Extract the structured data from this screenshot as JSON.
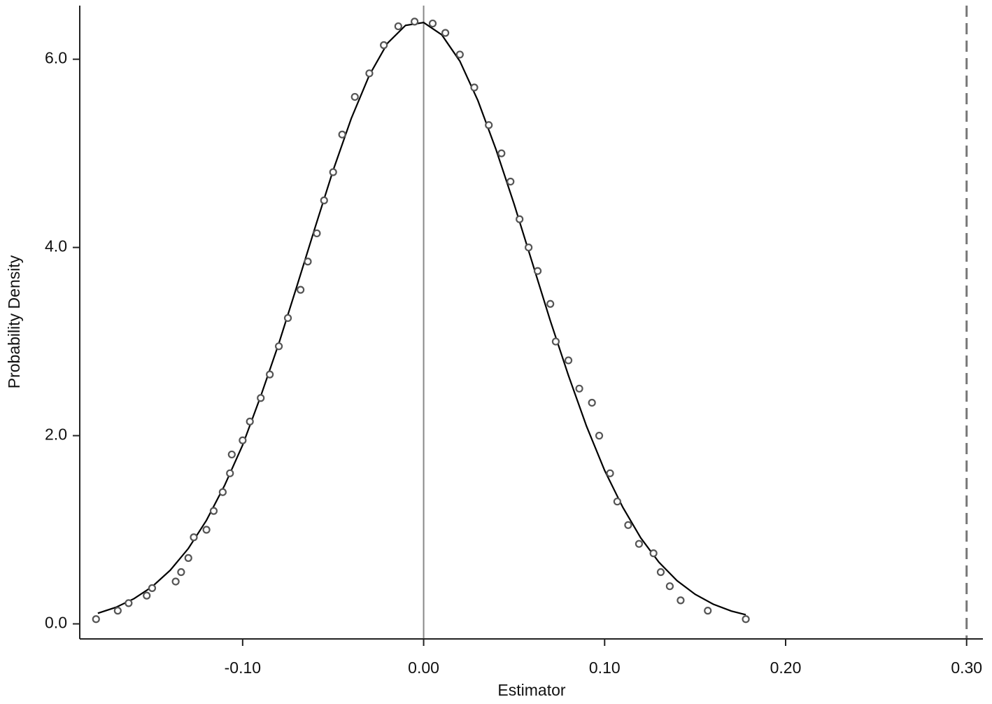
{
  "chart_data": {
    "type": "scatter",
    "x_label": "Estimator",
    "y_label": "Probability Density",
    "xlim": [
      -0.19,
      0.309
    ],
    "ylim": [
      -0.16,
      6.57
    ],
    "xticks": [
      {
        "value": -0.1,
        "label": "-0.10"
      },
      {
        "value": 0,
        "label": "0.00"
      },
      {
        "value": 0.1,
        "label": "0.10"
      },
      {
        "value": 0.2,
        "label": "0.20"
      },
      {
        "value": 0.3,
        "label": "0.30"
      }
    ],
    "yticks": [
      {
        "value": 0,
        "label": "0.0"
      },
      {
        "value": 2,
        "label": "2.0"
      },
      {
        "value": 4,
        "label": "4.0"
      },
      {
        "value": 6,
        "label": "6.0"
      }
    ],
    "points": {
      "color": "#555555",
      "x": [
        -0.181,
        -0.169,
        -0.163,
        -0.153,
        -0.15,
        -0.137,
        -0.134,
        -0.13,
        -0.127,
        -0.12,
        -0.116,
        -0.111,
        -0.107,
        -0.106,
        -0.1,
        -0.096,
        -0.09,
        -0.085,
        -0.08,
        -0.075,
        -0.068,
        -0.064,
        -0.059,
        -0.055,
        -0.05,
        -0.045,
        -0.038,
        -0.03,
        -0.022,
        -0.014,
        -0.005,
        0.005,
        0.012,
        0.02,
        0.028,
        0.036,
        0.043,
        0.048,
        0.053,
        0.058,
        0.063,
        0.07,
        0.073,
        0.08,
        0.086,
        0.093,
        0.097,
        0.103,
        0.107,
        0.113,
        0.119,
        0.127,
        0.131,
        0.136,
        0.142,
        0.157,
        0.178
      ],
      "y": [
        0.05,
        0.14,
        0.22,
        0.3,
        0.38,
        0.45,
        0.55,
        0.7,
        0.92,
        1.0,
        1.2,
        1.4,
        1.6,
        1.8,
        1.95,
        2.15,
        2.4,
        2.65,
        2.95,
        3.25,
        3.55,
        3.85,
        4.15,
        4.5,
        4.8,
        5.2,
        5.6,
        5.85,
        6.15,
        6.35,
        6.4,
        6.38,
        6.28,
        6.05,
        5.7,
        5.3,
        5.0,
        4.7,
        4.3,
        4.0,
        3.75,
        3.4,
        3.0,
        2.8,
        2.5,
        2.35,
        2.0,
        1.6,
        1.3,
        1.05,
        0.85,
        0.75,
        0.55,
        0.4,
        0.25,
        0.14,
        0.05
      ]
    },
    "curve": {
      "color": "#000000",
      "x": [
        -0.18,
        -0.17,
        -0.16,
        -0.15,
        -0.14,
        -0.13,
        -0.12,
        -0.11,
        -0.1,
        -0.09,
        -0.08,
        -0.07,
        -0.06,
        -0.05,
        -0.04,
        -0.03,
        -0.02,
        -0.01,
        0.0,
        0.01,
        0.02,
        0.03,
        0.04,
        0.05,
        0.06,
        0.07,
        0.08,
        0.09,
        0.1,
        0.11,
        0.12,
        0.13,
        0.14,
        0.15,
        0.16,
        0.17,
        0.178
      ],
      "y": [
        0.113,
        0.176,
        0.268,
        0.395,
        0.57,
        0.801,
        1.1,
        1.47,
        1.9,
        2.42,
        2.98,
        3.59,
        4.21,
        4.82,
        5.37,
        5.83,
        6.17,
        6.36,
        6.39,
        6.26,
        5.98,
        5.56,
        5.04,
        4.46,
        3.84,
        3.22,
        2.64,
        2.1,
        1.63,
        1.24,
        0.912,
        0.655,
        0.459,
        0.314,
        0.209,
        0.136,
        0.097
      ]
    },
    "reference_lines": [
      {
        "value": 0,
        "style": "solid",
        "color": "#888888"
      },
      {
        "value": 0.3,
        "style": "dashed",
        "color": "#777777"
      }
    ]
  }
}
